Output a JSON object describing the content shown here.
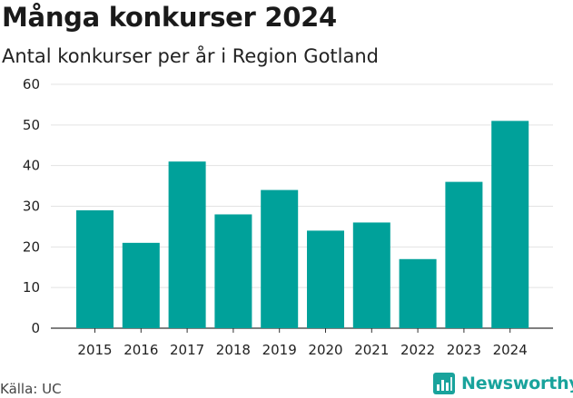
{
  "header": {
    "title": "Många konkurser 2024",
    "subtitle": "Antal konkurser per år i Region Gotland"
  },
  "footer": {
    "source": "Källa: UC",
    "brand": "Newsworthy",
    "brand_icon": "newsworthy-chart-icon"
  },
  "colors": {
    "bar": "#00a19a",
    "grid": "#e3e3e3",
    "brand": "#19a39c"
  },
  "chart_data": {
    "type": "bar",
    "categories": [
      "2015",
      "2016",
      "2017",
      "2018",
      "2019",
      "2020",
      "2021",
      "2022",
      "2023",
      "2024"
    ],
    "values": [
      29,
      21,
      41,
      28,
      34,
      24,
      26,
      17,
      36,
      51
    ],
    "yticks": [
      "0",
      "10",
      "20",
      "30",
      "40",
      "50",
      "60"
    ],
    "ylim": [
      0,
      60
    ],
    "grid": true,
    "legend": "none"
  }
}
